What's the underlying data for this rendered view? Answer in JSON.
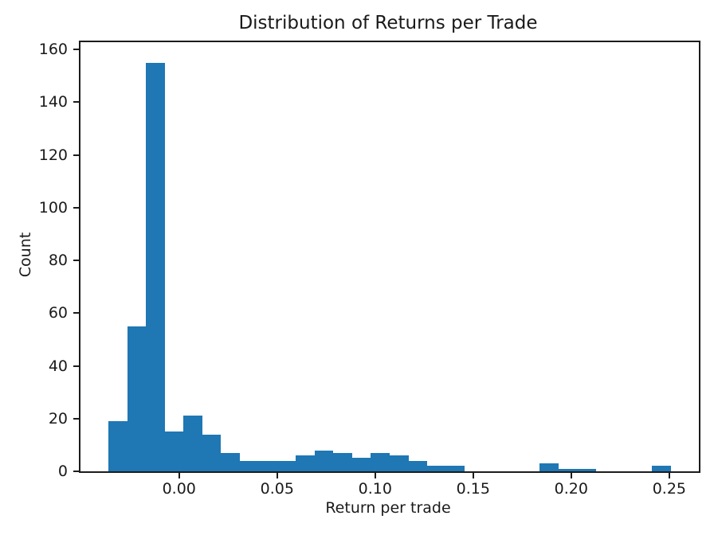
{
  "chart_data": {
    "type": "bar",
    "subtype": "histogram",
    "title": "Distribution of Returns per Trade",
    "xlabel": "Return per trade",
    "ylabel": "Count",
    "bar_color": "#1f77b4",
    "axes_color": "#1c1c1c",
    "text_color": "#1a1a1a",
    "background": "#ffffff",
    "grid": false,
    "legend": null,
    "bin_start": -0.036,
    "bin_width": 0.00956,
    "counts": [
      19,
      55,
      155,
      15,
      21,
      14,
      7,
      4,
      4,
      4,
      6,
      8,
      7,
      5,
      7,
      6,
      4,
      2,
      2,
      0,
      0,
      0,
      0,
      3,
      1,
      1,
      0,
      0,
      0,
      2
    ],
    "xlim": [
      -0.0503,
      0.2651
    ],
    "ylim": [
      0,
      162.75
    ],
    "xticks": {
      "values": [
        0.0,
        0.05,
        0.1,
        0.15,
        0.2,
        0.25
      ],
      "labels": [
        "0.00",
        "0.05",
        "0.10",
        "0.15",
        "0.20",
        "0.25"
      ]
    },
    "yticks": {
      "values": [
        0,
        20,
        40,
        60,
        80,
        100,
        120,
        140,
        160
      ],
      "labels": [
        "0",
        "20",
        "40",
        "60",
        "80",
        "100",
        "120",
        "140",
        "160"
      ]
    }
  }
}
